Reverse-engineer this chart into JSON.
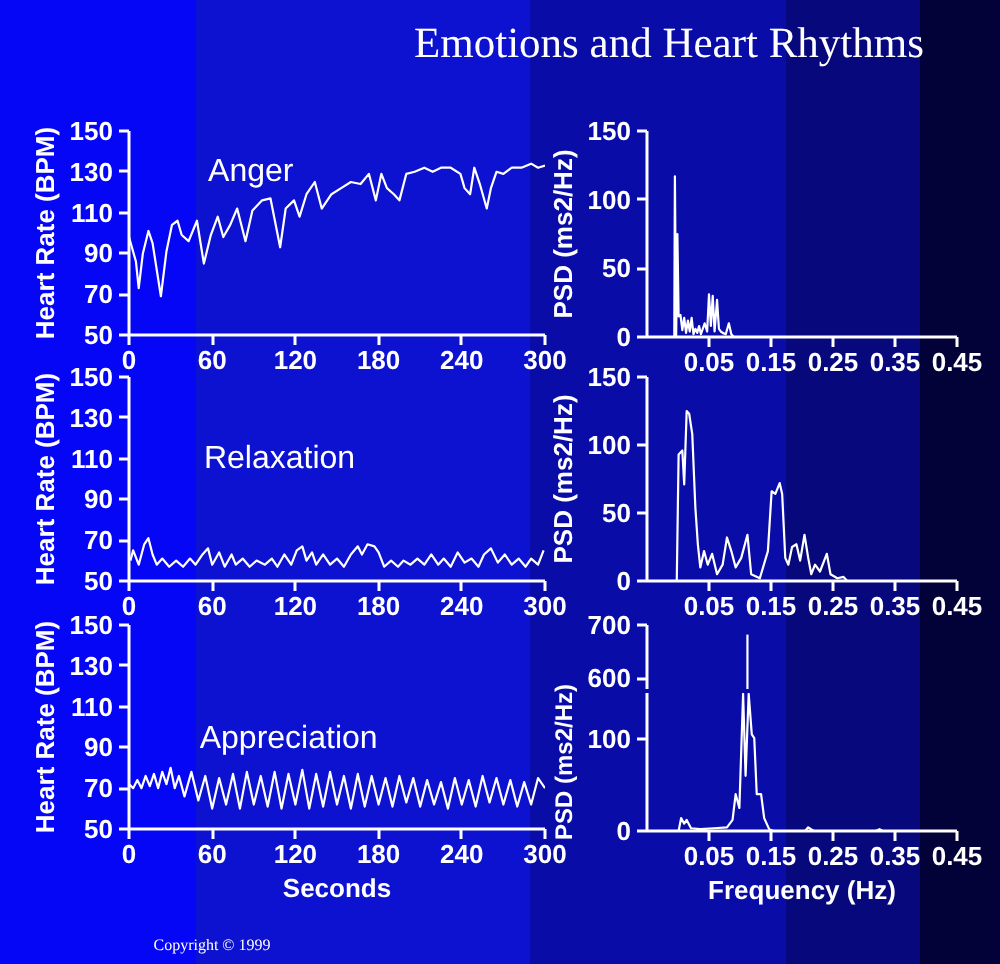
{
  "chart_data": [
    {
      "type": "line",
      "title": "Anger",
      "ylabel": "Heart Rate (BPM)",
      "annotations": [
        "Emotions and Heart Rhythms"
      ],
      "xlim": [
        0,
        300
      ],
      "xticks": [
        0,
        60,
        120,
        180,
        240,
        300
      ],
      "ylim": [
        50,
        150
      ],
      "yticks": [
        50,
        70,
        90,
        110,
        130,
        150
      ],
      "color": "#ffffff",
      "x": [
        0,
        5,
        7,
        10,
        14,
        17,
        23,
        27,
        31,
        35,
        38,
        43,
        49,
        54,
        59,
        64,
        68,
        73,
        78,
        84,
        89,
        96,
        102,
        109,
        113,
        119,
        123,
        128,
        134,
        139,
        146,
        153,
        160,
        167,
        173,
        178,
        182,
        186,
        191,
        195,
        200,
        206,
        213,
        219,
        225,
        232,
        239,
        242,
        246,
        249,
        253,
        258,
        261,
        265,
        270,
        276,
        283,
        290,
        295,
        300
      ],
      "values": [
        98,
        86,
        73,
        90,
        101,
        95,
        69,
        91,
        104,
        106,
        99,
        96,
        106,
        85,
        99,
        108,
        98,
        104,
        112,
        96,
        111,
        116,
        117,
        93,
        112,
        116,
        108,
        119,
        125,
        112,
        119,
        122,
        125,
        124,
        129,
        116,
        129,
        122,
        119,
        116,
        129,
        130,
        132,
        130,
        132,
        132,
        129,
        122,
        119,
        132,
        124,
        112,
        122,
        130,
        129,
        132,
        132,
        134,
        132,
        133
      ]
    },
    {
      "type": "line",
      "ylabel": "PSD (ms2/Hz)",
      "xlim": [
        -0.05,
        0.45
      ],
      "xticks": [
        0.05,
        0.15,
        0.25,
        0.35,
        0.45
      ],
      "ylim": [
        0,
        150
      ],
      "yticks": [
        0,
        50,
        100,
        150
      ],
      "color": "#ffffff",
      "x": [
        -0.05,
        -0.01,
        -0.006,
        -0.005,
        -0.003,
        -0.001,
        0.001,
        0.004,
        0.007,
        0.01,
        0.013,
        0.016,
        0.019,
        0.022,
        0.025,
        0.028,
        0.031,
        0.034,
        0.037,
        0.043,
        0.047,
        0.05,
        0.053,
        0.056,
        0.059,
        0.063,
        0.066,
        0.069,
        0.072,
        0.077,
        0.082,
        0.086,
        0.09,
        0.45
      ],
      "values": [
        0,
        0,
        0,
        117,
        0,
        75,
        15,
        16,
        5,
        14,
        3,
        12,
        4,
        14,
        2,
        6,
        3,
        8,
        2,
        10,
        4,
        31,
        8,
        30,
        4,
        27,
        6,
        4,
        3,
        2,
        10,
        2,
        0,
        0
      ]
    },
    {
      "type": "line",
      "title": "Relaxation",
      "ylabel": "Heart Rate (BPM)",
      "xlim": [
        0,
        300
      ],
      "xticks": [
        0,
        60,
        120,
        180,
        240,
        300
      ],
      "ylim": [
        50,
        150
      ],
      "yticks": [
        50,
        70,
        90,
        110,
        130,
        150
      ],
      "color": "#ffffff",
      "x": [
        1,
        3,
        7,
        11,
        14,
        17,
        20,
        24,
        29,
        34,
        39,
        44,
        48,
        53,
        57,
        60,
        65,
        69,
        74,
        77,
        82,
        87,
        92,
        98,
        103,
        107,
        112,
        117,
        121,
        125,
        128,
        132,
        135,
        140,
        145,
        150,
        155,
        160,
        165,
        168,
        172,
        177,
        180,
        184,
        189,
        194,
        198,
        203,
        208,
        213,
        218,
        223,
        227,
        232,
        237,
        242,
        247,
        252,
        256,
        261,
        266,
        271,
        276,
        281,
        286,
        290,
        295,
        299
      ],
      "values": [
        60,
        65,
        58,
        68,
        71,
        63,
        58,
        61,
        57,
        60,
        57,
        61,
        58,
        63,
        66,
        58,
        64,
        57,
        63,
        58,
        61,
        57,
        60,
        58,
        61,
        57,
        63,
        58,
        65,
        67,
        60,
        64,
        58,
        63,
        58,
        61,
        57,
        63,
        67,
        63,
        68,
        67,
        64,
        57,
        60,
        57,
        60,
        58,
        61,
        58,
        63,
        58,
        61,
        57,
        64,
        59,
        61,
        57,
        63,
        66,
        59,
        63,
        58,
        61,
        57,
        61,
        58,
        65
      ]
    },
    {
      "type": "line",
      "ylabel": "PSD (ms2/Hz)",
      "xlim": [
        -0.05,
        0.45
      ],
      "xticks": [
        0.05,
        0.15,
        0.25,
        0.35,
        0.45
      ],
      "ylim": [
        0,
        150
      ],
      "yticks": [
        0,
        50,
        100,
        150
      ],
      "color": "#ffffff",
      "x": [
        -0.05,
        -0.002,
        0.001,
        0.007,
        0.01,
        0.014,
        0.018,
        0.023,
        0.028,
        0.032,
        0.036,
        0.042,
        0.048,
        0.055,
        0.063,
        0.072,
        0.079,
        0.086,
        0.093,
        0.102,
        0.112,
        0.118,
        0.132,
        0.145,
        0.151,
        0.157,
        0.164,
        0.168,
        0.173,
        0.178,
        0.184,
        0.191,
        0.197,
        0.204,
        0.21,
        0.215,
        0.221,
        0.229,
        0.24,
        0.246,
        0.257,
        0.267,
        0.273,
        0.45
      ],
      "values": [
        0,
        0,
        93,
        96,
        71,
        125,
        123,
        108,
        54,
        27,
        10,
        22,
        12,
        20,
        5,
        12,
        32,
        22,
        10,
        17,
        34,
        5,
        2,
        22,
        66,
        64,
        72,
        64,
        17,
        12,
        25,
        27,
        15,
        34,
        17,
        5,
        12,
        7,
        20,
        5,
        2,
        3,
        0,
        0
      ]
    },
    {
      "type": "line",
      "title": "Appreciation",
      "ylabel": "Heart Rate (BPM)",
      "xlabel": "Seconds",
      "annotations": [
        "Copyright © 1999"
      ],
      "xlim": [
        0,
        300
      ],
      "xticks": [
        0,
        60,
        120,
        180,
        240,
        300
      ],
      "ylim": [
        50,
        150
      ],
      "yticks": [
        50,
        70,
        90,
        110,
        130,
        150
      ],
      "color": "#ffffff",
      "x": [
        0,
        3,
        6,
        9,
        12,
        15,
        18,
        21,
        24,
        27,
        30,
        33,
        36,
        40,
        45,
        50,
        55,
        60,
        65,
        70,
        75,
        80,
        85,
        90,
        95,
        100,
        105,
        110,
        115,
        120,
        125,
        130,
        135,
        140,
        145,
        150,
        155,
        160,
        165,
        170,
        175,
        180,
        185,
        190,
        195,
        200,
        205,
        210,
        215,
        220,
        225,
        230,
        235,
        240,
        245,
        250,
        255,
        260,
        265,
        270,
        275,
        280,
        285,
        290,
        295,
        300
      ],
      "values": [
        72,
        70,
        74,
        70,
        76,
        71,
        77,
        70,
        78,
        72,
        80,
        70,
        76,
        66,
        78,
        64,
        76,
        60,
        75,
        62,
        77,
        60,
        78,
        62,
        76,
        61,
        78,
        60,
        77,
        62,
        79,
        60,
        77,
        61,
        78,
        62,
        76,
        60,
        77,
        61,
        76,
        62,
        75,
        61,
        76,
        63,
        75,
        61,
        74,
        62,
        73,
        60,
        75,
        62,
        74,
        61,
        76,
        63,
        75,
        62,
        74,
        61,
        73,
        62,
        75,
        70
      ]
    },
    {
      "type": "line",
      "tick_labels": "y",
      "xlim": [
        -0.05,
        0.45
      ],
      "ylim": [
        580,
        700
      ],
      "yticks": [
        600,
        700
      ],
      "color": "#ffffff",
      "x": [
        0.112,
        0.112
      ],
      "values": [
        580,
        682
      ]
    },
    {
      "type": "line",
      "ylabel": "PSD (ms2/Hz)",
      "xlabel": "Frequency (Hz)",
      "xlim": [
        -0.05,
        0.45
      ],
      "xticks": [
        0.05,
        0.15,
        0.25,
        0.35,
        0.45
      ],
      "ylim": [
        0,
        150
      ],
      "yticks": [
        0,
        100
      ],
      "color": "#ffffff",
      "x": [
        -0.05,
        0.001,
        0.005,
        0.01,
        0.014,
        0.021,
        0.036,
        0.058,
        0.079,
        0.088,
        0.093,
        0.099,
        0.105,
        0.109,
        0.114,
        0.119,
        0.123,
        0.127,
        0.134,
        0.139,
        0.147,
        0.154,
        0.205,
        0.21,
        0.219,
        0.319,
        0.325,
        0.33,
        0.45
      ],
      "values": [
        0,
        0,
        14,
        8,
        12,
        3,
        2,
        3,
        4,
        12,
        40,
        25,
        149,
        60,
        149,
        105,
        101,
        40,
        40,
        14,
        2,
        0,
        0,
        4,
        0,
        0,
        2,
        0,
        0
      ]
    }
  ]
}
